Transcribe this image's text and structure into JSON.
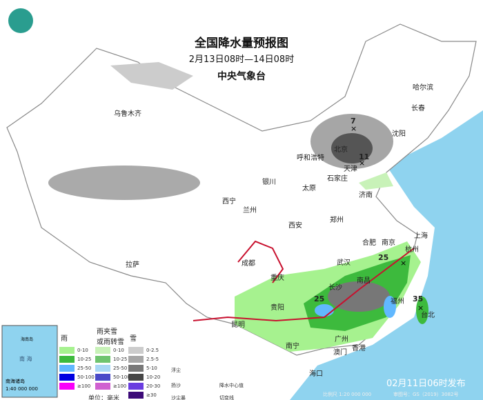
{
  "header": {
    "title": "全国降水量预报图",
    "period": "2月13日08时—14日08时",
    "issuer": "中央气象台"
  },
  "cities": [
    "乌鲁木齐",
    "哈尔滨",
    "长春",
    "沈阳",
    "呼和浩特",
    "北京",
    "天津",
    "石家庄",
    "太原",
    "济南",
    "银川",
    "西宁",
    "兰州",
    "西安",
    "郑州",
    "成都",
    "重庆",
    "拉萨",
    "贵阳",
    "昆明",
    "南宁",
    "广州",
    "澳门",
    "香港",
    "海口",
    "武汉",
    "长沙",
    "南昌",
    "合肥",
    "南京",
    "上海",
    "杭州",
    "福州",
    "台北"
  ],
  "centers": [
    "7",
    "11",
    "25",
    "25",
    "35"
  ],
  "legend": {
    "rain": {
      "title": "雨",
      "items": [
        {
          "label": "0-10",
          "color": "#a6f28f"
        },
        {
          "label": "10-25",
          "color": "#3dba3d"
        },
        {
          "label": "25-50",
          "color": "#61b8ff"
        },
        {
          "label": "50-100",
          "color": "#0000e1"
        },
        {
          "label": "≥100",
          "color": "#fa00fa"
        }
      ]
    },
    "mixed": {
      "title": "雨夹雪\n或雨转雪",
      "items": [
        {
          "label": "0-10",
          "color": "#c8f2b8"
        },
        {
          "label": "10-25",
          "color": "#6fc46f"
        },
        {
          "label": "25-50",
          "color": "#a9d8f5"
        },
        {
          "label": "50-100",
          "color": "#4a4ac8"
        },
        {
          "label": "≥100",
          "color": "#d060d0"
        }
      ]
    },
    "snow": {
      "title": "雪",
      "items": [
        {
          "label": "0-2.5",
          "color": "#cccccc"
        },
        {
          "label": "2.5-5",
          "color": "#a6a6a6"
        },
        {
          "label": "5-10",
          "color": "#787878"
        },
        {
          "label": "10-20",
          "color": "#464646"
        },
        {
          "label": "20-30",
          "color": "#6a3de0"
        },
        {
          "label": "≥30",
          "color": "#3c0a78"
        }
      ]
    },
    "unit": "单位：毫米",
    "symbols": {
      "float_dust": "浮尘",
      "blowing_sand": "扬沙",
      "sandstorm": "沙尘暴",
      "precip_center": "降水中心值",
      "shear_line": "切变线"
    }
  },
  "inset": {
    "label": "南海诸岛",
    "scale": "1:40 000 000",
    "island": "海南岛",
    "sea": "南 海"
  },
  "footer": {
    "issued": "02月11日06时发布",
    "scale": "比例尺 1:20 000 000",
    "map_no": "审图号：GS（2019）3082号"
  },
  "colors": {
    "sea": "#8fd3ef",
    "land": "#ffffff",
    "border": "#888888",
    "rain_light": "#a6f28f",
    "rain_mod": "#3dba3d",
    "snow_light": "#cccccc",
    "snow_dark": "#464646",
    "shear": "#c8102e"
  }
}
